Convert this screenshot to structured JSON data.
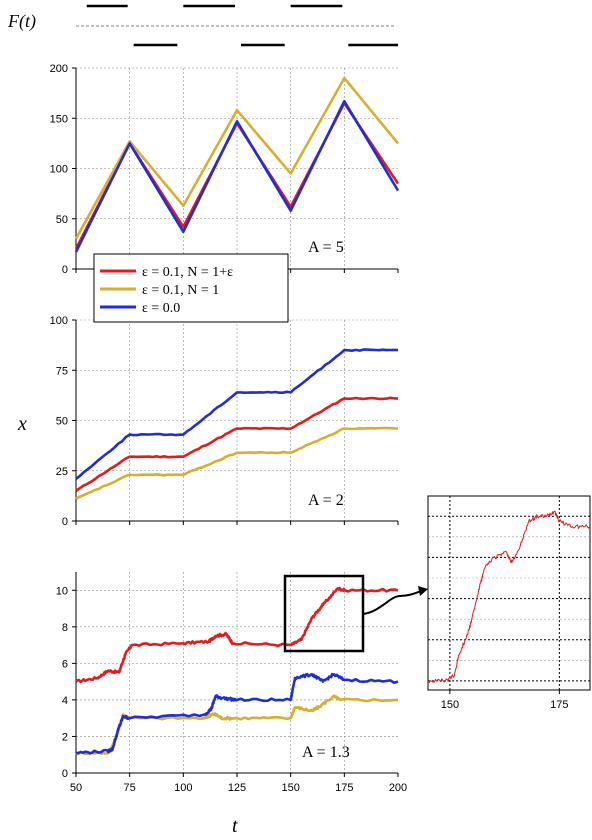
{
  "chart_data": [
    {
      "type": "line",
      "id": "forcing",
      "ylabel": "F(t)",
      "segments_high": [
        [
          55,
          75
        ],
        [
          100,
          125
        ],
        [
          150,
          175
        ]
      ],
      "segments_low": [
        [
          75,
          100
        ],
        [
          125,
          150
        ],
        [
          175,
          200
        ]
      ]
    },
    {
      "type": "line",
      "id": "panel-a5",
      "annotation": "A = 5",
      "xlim": [
        50,
        200
      ],
      "ylim": [
        0,
        200
      ],
      "xticks": [
        50,
        75,
        100,
        125,
        150,
        175,
        200
      ],
      "yticks": [
        0,
        50,
        100,
        150,
        200
      ],
      "series": [
        {
          "name": "ε = 0.1,  N = 1+ε",
          "color": "#e41a1c",
          "x": [
            50,
            75,
            100,
            125,
            150,
            175,
            200
          ],
          "y": [
            20,
            125,
            42,
            145,
            62,
            165,
            85
          ]
        },
        {
          "name": "ε = 0.1,  N = 1",
          "color": "#d9ae2c",
          "x": [
            50,
            75,
            100,
            125,
            150,
            175,
            200
          ],
          "y": [
            30,
            127,
            63,
            158,
            95,
            190,
            125
          ]
        },
        {
          "name": "ε = 0.0",
          "color": "#1f2ed8",
          "x": [
            50,
            75,
            100,
            125,
            150,
            175,
            200
          ],
          "y": [
            17,
            125,
            37,
            147,
            58,
            167,
            78
          ]
        }
      ]
    },
    {
      "type": "line",
      "id": "panel-a2",
      "annotation": "A = 2",
      "xlim": [
        50,
        200
      ],
      "ylim": [
        0,
        100
      ],
      "xticks": [
        50,
        75,
        100,
        125,
        150,
        175,
        200
      ],
      "yticks": [
        0,
        25,
        50,
        75,
        100
      ],
      "series": [
        {
          "name": "ε = 0.1,  N = 1+ε",
          "color": "#e41a1c",
          "x": [
            50,
            75,
            100,
            125,
            150,
            175,
            200
          ],
          "y": [
            15,
            32,
            32,
            46,
            46,
            61,
            61
          ]
        },
        {
          "name": "ε = 0.1,  N = 1",
          "color": "#d9ae2c",
          "x": [
            50,
            75,
            100,
            125,
            150,
            175,
            200
          ],
          "y": [
            11,
            23,
            23,
            34,
            34,
            46,
            46
          ]
        },
        {
          "name": "ε = 0.0",
          "color": "#1f2ed8",
          "x": [
            50,
            75,
            100,
            125,
            150,
            175,
            200
          ],
          "y": [
            21,
            43,
            43,
            64,
            64,
            85,
            85
          ]
        }
      ]
    },
    {
      "type": "line",
      "id": "panel-a13",
      "annotation": "A = 1.3",
      "xlabel": "t",
      "xlim": [
        50,
        200
      ],
      "ylim": [
        0,
        11
      ],
      "xticks": [
        50,
        75,
        100,
        125,
        150,
        175,
        200
      ],
      "yticks": [
        0,
        2,
        4,
        6,
        8,
        10
      ],
      "series": [
        {
          "name": "ε = 0.1,  N = 1+ε",
          "color": "#e41a1c",
          "x": [
            50,
            60,
            65,
            70,
            73,
            76,
            100,
            112,
            115,
            120,
            123,
            150,
            155,
            160,
            165,
            172,
            175,
            200
          ],
          "y": [
            5,
            5.2,
            5.6,
            5.5,
            6.5,
            7,
            7.1,
            7.2,
            7.5,
            7.6,
            7.1,
            7,
            7.3,
            8.5,
            9.2,
            10.1,
            10,
            10
          ]
        },
        {
          "name": "ε = 0.1,  N = 1",
          "color": "#d9ae2c",
          "x": [
            50,
            65,
            67,
            70,
            72,
            75,
            110,
            113,
            115,
            118,
            125,
            150,
            152,
            160,
            163,
            170,
            173,
            200
          ],
          "y": [
            1.1,
            1.1,
            1.5,
            2.4,
            3.2,
            3,
            3,
            3.2,
            3.2,
            3,
            3,
            3,
            3.6,
            3.4,
            3.6,
            4.2,
            4,
            4
          ]
        },
        {
          "name": "ε = 0.0",
          "color": "#1f2ed8",
          "x": [
            50,
            65,
            67,
            70,
            72,
            75,
            110,
            113,
            115,
            118,
            125,
            150,
            152,
            160,
            165,
            170,
            175,
            200
          ],
          "y": [
            1.1,
            1.2,
            1.3,
            2.5,
            3.1,
            3,
            3.2,
            3.5,
            4.2,
            4.1,
            4,
            4,
            5.2,
            5.4,
            5,
            5.4,
            5.1,
            5
          ]
        }
      ]
    },
    {
      "type": "line",
      "id": "inset",
      "xlim": [
        145,
        182
      ],
      "xticks": [
        150,
        175
      ],
      "series": [
        {
          "name": "inset",
          "color": "#e41a1c",
          "x": [
            145,
            149,
            151,
            152,
            154,
            155,
            157,
            158,
            160,
            163,
            164,
            166,
            168,
            170,
            172,
            174,
            175,
            178,
            182
          ],
          "y": [
            7,
            7,
            7.1,
            7.5,
            7.9,
            8.2,
            8.9,
            9.2,
            9.4,
            9.5,
            9.3,
            9.6,
            10.1,
            10.2,
            10.2,
            10.3,
            10.1,
            10,
            10
          ]
        }
      ]
    }
  ],
  "labels": {
    "x_axis": "x",
    "legend": [
      "ε = 0.1,  N = 1+ε",
      "ε = 0.1,  N = 1",
      "ε = 0.0"
    ]
  }
}
